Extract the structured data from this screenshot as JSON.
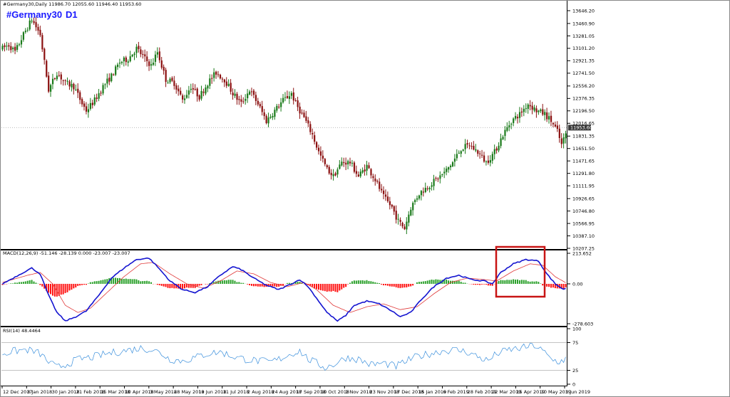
{
  "header": {
    "info": "#Germany30,Daily  11986.70 12055.60 11946.40 11953.60",
    "symbol": "#Germany30",
    "timeframe": "D1"
  },
  "colors": {
    "bull": "#1a7a1a",
    "bear": "#8b1010",
    "macd_line": "#1414d0",
    "signal_line": "#e03a3a",
    "hist_pos": "#2aa02a",
    "hist_neg": "#ff1010",
    "rsi_line": "#3a8fdc",
    "highlight": "#c81414",
    "price_tag": "#3a3a3a"
  },
  "chart_data": [
    {
      "type": "candlestick",
      "name": "price",
      "last_price": "11953.60",
      "y_ticks": [
        "13646.20",
        "13460.90",
        "13281.05",
        "13101.20",
        "12921.35",
        "12741.50",
        "12556.20",
        "12376.35",
        "12196.50",
        "12016.65",
        "11831.35",
        "11651.50",
        "11471.65",
        "11291.80",
        "11111.95",
        "10926.65",
        "10746.80",
        "10566.95",
        "10387.10",
        "10207.25"
      ],
      "ylim": [
        10207.25,
        13646.2
      ],
      "x_ticks": [
        "12 Dec 2017",
        "8 Jan 2018",
        "30 Jan 2018",
        "21 Feb 2018",
        "15 Mar 2018",
        "10 Apr 2018",
        "3 May 2018",
        "28 May 2018",
        "19 Jun 2018",
        "11 Jul 2018",
        "2 Aug 2018",
        "24 Aug 2018",
        "17 Sep 2018",
        "10 Oct 2018",
        "1 Nov 2018",
        "23 Nov 2018",
        "17 Dec 2018",
        "15 Jan 2019",
        "6 Feb 2019",
        "28 Feb 2019",
        "22 Mar 2019",
        "15 Apr 2019",
        "10 May 2019",
        "3 Jun 2019"
      ],
      "keypoints": [
        [
          0,
          13100
        ],
        [
          3,
          13150
        ],
        [
          6,
          13050
        ],
        [
          10,
          13300
        ],
        [
          14,
          13520
        ],
        [
          18,
          13300
        ],
        [
          20,
          12900
        ],
        [
          22,
          12500
        ],
        [
          26,
          12750
        ],
        [
          30,
          12600
        ],
        [
          34,
          12550
        ],
        [
          38,
          12300
        ],
        [
          40,
          12200
        ],
        [
          44,
          12350
        ],
        [
          48,
          12550
        ],
        [
          52,
          12700
        ],
        [
          56,
          12900
        ],
        [
          60,
          12950
        ],
        [
          64,
          13100
        ],
        [
          68,
          12950
        ],
        [
          71,
          12850
        ],
        [
          74,
          13050
        ],
        [
          78,
          12650
        ],
        [
          82,
          12600
        ],
        [
          86,
          12350
        ],
        [
          90,
          12550
        ],
        [
          94,
          12400
        ],
        [
          98,
          12600
        ],
        [
          102,
          12750
        ],
        [
          106,
          12650
        ],
        [
          110,
          12450
        ],
        [
          114,
          12300
        ],
        [
          118,
          12500
        ],
        [
          122,
          12300
        ],
        [
          126,
          12050
        ],
        [
          130,
          12200
        ],
        [
          134,
          12350
        ],
        [
          138,
          12450
        ],
        [
          140,
          12300
        ],
        [
          144,
          12100
        ],
        [
          148,
          11850
        ],
        [
          151,
          11600
        ],
        [
          155,
          11350
        ],
        [
          158,
          11250
        ],
        [
          162,
          11450
        ],
        [
          166,
          11450
        ],
        [
          170,
          11250
        ],
        [
          174,
          11400
        ],
        [
          178,
          11200
        ],
        [
          182,
          10950
        ],
        [
          186,
          10800
        ],
        [
          189,
          10600
        ],
        [
          192,
          10500
        ],
        [
          195,
          10800
        ],
        [
          199,
          11000
        ],
        [
          203,
          11100
        ],
        [
          207,
          11200
        ],
        [
          211,
          11300
        ],
        [
          215,
          11450
        ],
        [
          219,
          11650
        ],
        [
          223,
          11700
        ],
        [
          227,
          11600
        ],
        [
          231,
          11450
        ],
        [
          235,
          11600
        ],
        [
          239,
          11850
        ],
        [
          243,
          12050
        ],
        [
          247,
          12150
        ],
        [
          251,
          12300
        ],
        [
          255,
          12200
        ],
        [
          259,
          12150
        ],
        [
          262,
          12050
        ],
        [
          265,
          11900
        ],
        [
          267,
          11700
        ],
        [
          270,
          11950
        ]
      ],
      "count": 270
    },
    {
      "type": "macd",
      "label": "MACD(12,26,9) -51.146 -28.139 0.000 -23.007 -23.007",
      "y_ticks": [
        "213.652",
        "0.00",
        "-278.603"
      ],
      "ylim": [
        -278.603,
        213.652
      ],
      "macd_keypoints": [
        [
          0,
          0
        ],
        [
          10,
          80
        ],
        [
          14,
          110
        ],
        [
          18,
          70
        ],
        [
          22,
          -80
        ],
        [
          26,
          -200
        ],
        [
          30,
          -260
        ],
        [
          35,
          -230
        ],
        [
          40,
          -190
        ],
        [
          46,
          -80
        ],
        [
          52,
          40
        ],
        [
          58,
          110
        ],
        [
          64,
          170
        ],
        [
          70,
          180
        ],
        [
          74,
          120
        ],
        [
          80,
          20
        ],
        [
          86,
          -40
        ],
        [
          92,
          -60
        ],
        [
          98,
          -20
        ],
        [
          104,
          60
        ],
        [
          110,
          120
        ],
        [
          114,
          100
        ],
        [
          120,
          40
        ],
        [
          126,
          -10
        ],
        [
          132,
          -40
        ],
        [
          138,
          0
        ],
        [
          142,
          30
        ],
        [
          146,
          -20
        ],
        [
          150,
          -100
        ],
        [
          155,
          -200
        ],
        [
          160,
          -260
        ],
        [
          164,
          -220
        ],
        [
          168,
          -150
        ],
        [
          174,
          -120
        ],
        [
          180,
          -140
        ],
        [
          186,
          -190
        ],
        [
          190,
          -230
        ],
        [
          195,
          -200
        ],
        [
          200,
          -110
        ],
        [
          206,
          -20
        ],
        [
          212,
          40
        ],
        [
          218,
          60
        ],
        [
          224,
          30
        ],
        [
          230,
          20
        ],
        [
          234,
          0
        ],
        [
          238,
          80
        ],
        [
          244,
          140
        ],
        [
          250,
          170
        ],
        [
          256,
          160
        ],
        [
          260,
          70
        ],
        [
          264,
          0
        ],
        [
          268,
          -40
        ],
        [
          270,
          -20
        ]
      ],
      "signal_keypoints": [
        [
          0,
          10
        ],
        [
          12,
          60
        ],
        [
          18,
          80
        ],
        [
          24,
          0
        ],
        [
          30,
          -150
        ],
        [
          36,
          -200
        ],
        [
          42,
          -170
        ],
        [
          50,
          -60
        ],
        [
          58,
          50
        ],
        [
          66,
          140
        ],
        [
          72,
          150
        ],
        [
          80,
          70
        ],
        [
          88,
          0
        ],
        [
          96,
          -30
        ],
        [
          104,
          20
        ],
        [
          112,
          90
        ],
        [
          120,
          70
        ],
        [
          128,
          10
        ],
        [
          136,
          -20
        ],
        [
          144,
          10
        ],
        [
          150,
          -40
        ],
        [
          158,
          -150
        ],
        [
          166,
          -200
        ],
        [
          174,
          -160
        ],
        [
          182,
          -140
        ],
        [
          190,
          -180
        ],
        [
          198,
          -160
        ],
        [
          206,
          -70
        ],
        [
          214,
          10
        ],
        [
          222,
          40
        ],
        [
          230,
          30
        ],
        [
          236,
          20
        ],
        [
          244,
          90
        ],
        [
          252,
          140
        ],
        [
          258,
          130
        ],
        [
          264,
          50
        ],
        [
          270,
          0
        ]
      ]
    },
    {
      "type": "line",
      "name": "rsi",
      "label": "RSI(14) 48.4464",
      "y_ticks": [
        "100",
        "75",
        "25",
        "0"
      ],
      "ylim": [
        0,
        100
      ],
      "levels": [
        25,
        75
      ],
      "keypoints": [
        [
          0,
          55
        ],
        [
          6,
          60
        ],
        [
          12,
          62
        ],
        [
          18,
          55
        ],
        [
          22,
          40
        ],
        [
          26,
          30
        ],
        [
          30,
          35
        ],
        [
          36,
          45
        ],
        [
          42,
          48
        ],
        [
          50,
          55
        ],
        [
          58,
          60
        ],
        [
          66,
          65
        ],
        [
          72,
          62
        ],
        [
          76,
          55
        ],
        [
          80,
          45
        ],
        [
          86,
          42
        ],
        [
          92,
          48
        ],
        [
          98,
          55
        ],
        [
          104,
          58
        ],
        [
          110,
          50
        ],
        [
          116,
          45
        ],
        [
          122,
          42
        ],
        [
          128,
          40
        ],
        [
          132,
          45
        ],
        [
          138,
          55
        ],
        [
          142,
          60
        ],
        [
          146,
          45
        ],
        [
          150,
          38
        ],
        [
          154,
          30
        ],
        [
          158,
          35
        ],
        [
          164,
          48
        ],
        [
          170,
          45
        ],
        [
          176,
          35
        ],
        [
          182,
          38
        ],
        [
          188,
          32
        ],
        [
          192,
          40
        ],
        [
          198,
          50
        ],
        [
          204,
          55
        ],
        [
          210,
          60
        ],
        [
          216,
          62
        ],
        [
          222,
          58
        ],
        [
          228,
          48
        ],
        [
          232,
          42
        ],
        [
          236,
          55
        ],
        [
          242,
          62
        ],
        [
          248,
          65
        ],
        [
          254,
          70
        ],
        [
          258,
          60
        ],
        [
          262,
          45
        ],
        [
          266,
          40
        ],
        [
          270,
          48
        ]
      ]
    }
  ]
}
